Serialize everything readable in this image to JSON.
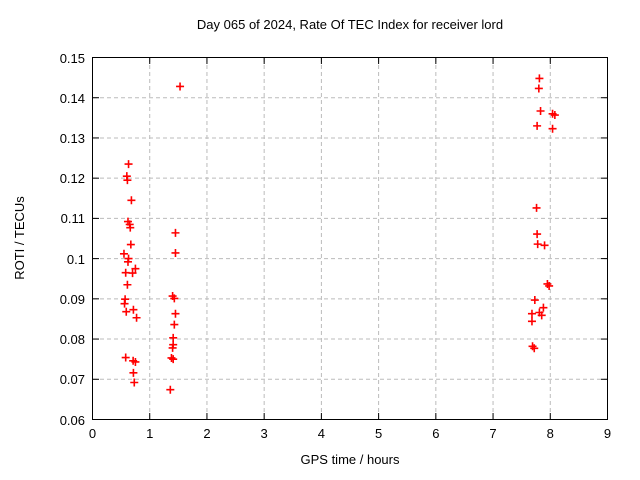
{
  "title": "Day 065 of 2024, Rate Of TEC Index for receiver lord",
  "chart_data": {
    "type": "scatter",
    "title": "Day 065 of 2024, Rate Of TEC Index for receiver lord",
    "xlabel": "GPS time / hours",
    "ylabel": "ROTI / TECUs",
    "xlim": [
      0,
      9
    ],
    "ylim": [
      0.06,
      0.15
    ],
    "grid": true,
    "legend": "none",
    "marker": "plus",
    "marker_color": "#ff0000",
    "grid_color": "#bbbbbb",
    "border_color": "#000000",
    "x_ticks": [
      {
        "label": "0",
        "value": 0
      },
      {
        "label": "1",
        "value": 1
      },
      {
        "label": "2",
        "value": 2
      },
      {
        "label": "3",
        "value": 3
      },
      {
        "label": "4",
        "value": 4
      },
      {
        "label": "5",
        "value": 5
      },
      {
        "label": "6",
        "value": 6
      },
      {
        "label": "7",
        "value": 7
      },
      {
        "label": "8",
        "value": 8
      },
      {
        "label": "9",
        "value": 9
      }
    ],
    "y_ticks": [
      {
        "label": "0.06",
        "value": 0.06
      },
      {
        "label": "0.07",
        "value": 0.07
      },
      {
        "label": "0.08",
        "value": 0.08
      },
      {
        "label": "0.09",
        "value": 0.09
      },
      {
        "label": "0.1",
        "value": 0.1
      },
      {
        "label": "0.11",
        "value": 0.11
      },
      {
        "label": "0.12",
        "value": 0.12
      },
      {
        "label": "0.13",
        "value": 0.13
      },
      {
        "label": "0.14",
        "value": 0.14
      },
      {
        "label": "0.15",
        "value": 0.15
      }
    ],
    "series": [
      {
        "name": "ROTI",
        "points": [
          [
            0.63,
            0.1235
          ],
          [
            0.6,
            0.1205
          ],
          [
            0.61,
            0.1195
          ],
          [
            0.68,
            0.1145
          ],
          [
            0.62,
            0.1092
          ],
          [
            0.65,
            0.1085
          ],
          [
            0.66,
            0.1077
          ],
          [
            0.67,
            0.1035
          ],
          [
            0.55,
            0.1012
          ],
          [
            0.63,
            0.1
          ],
          [
            0.62,
            0.0992
          ],
          [
            0.75,
            0.0975
          ],
          [
            0.58,
            0.0965
          ],
          [
            0.7,
            0.0964
          ],
          [
            0.61,
            0.0935
          ],
          [
            0.57,
            0.0899
          ],
          [
            0.56,
            0.0888
          ],
          [
            0.715,
            0.0873
          ],
          [
            0.59,
            0.0868
          ],
          [
            0.77,
            0.0853
          ],
          [
            0.58,
            0.0754
          ],
          [
            0.71,
            0.0746
          ],
          [
            0.75,
            0.0743
          ],
          [
            0.715,
            0.0716
          ],
          [
            0.73,
            0.0692
          ],
          [
            1.53,
            0.1428
          ],
          [
            1.45,
            0.1064
          ],
          [
            1.45,
            0.1014
          ],
          [
            1.4,
            0.0907
          ],
          [
            1.43,
            0.0901
          ],
          [
            1.45,
            0.0863
          ],
          [
            1.43,
            0.0836
          ],
          [
            1.41,
            0.0803
          ],
          [
            1.41,
            0.0786
          ],
          [
            1.4,
            0.0778
          ],
          [
            1.38,
            0.0753
          ],
          [
            1.41,
            0.075
          ],
          [
            1.36,
            0.0674
          ],
          [
            7.81,
            0.1448
          ],
          [
            7.8,
            0.1423
          ],
          [
            7.83,
            0.1367
          ],
          [
            8.04,
            0.136
          ],
          [
            8.08,
            0.1357
          ],
          [
            7.77,
            0.133
          ],
          [
            8.04,
            0.1323
          ],
          [
            7.76,
            0.1126
          ],
          [
            7.77,
            0.1061
          ],
          [
            7.78,
            0.1036
          ],
          [
            7.9,
            0.1033
          ],
          [
            7.95,
            0.0937
          ],
          [
            7.98,
            0.0932
          ],
          [
            7.73,
            0.0897
          ],
          [
            7.88,
            0.0878
          ],
          [
            7.81,
            0.0866
          ],
          [
            7.85,
            0.0859
          ],
          [
            7.68,
            0.0863
          ],
          [
            7.68,
            0.0844
          ],
          [
            7.69,
            0.0782
          ],
          [
            7.72,
            0.0777
          ]
        ]
      }
    ]
  }
}
